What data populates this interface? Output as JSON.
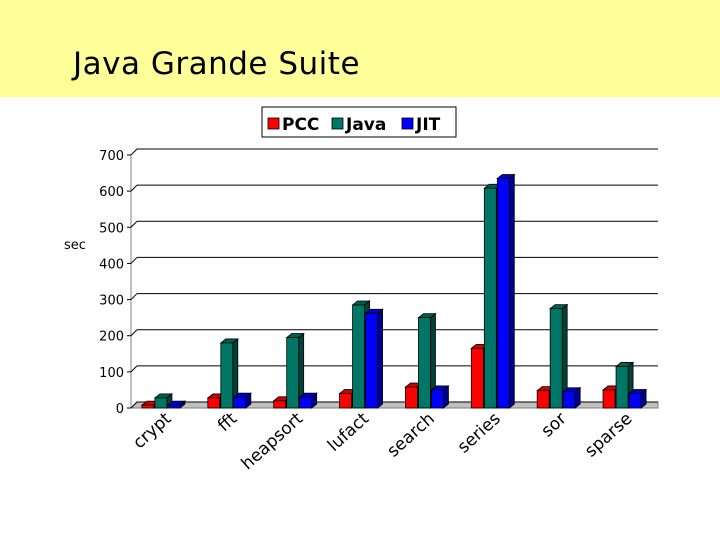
{
  "slide": {
    "title": "Java Grande Suite"
  },
  "chart_data": {
    "type": "bar",
    "style": "3d-clustered",
    "title": "",
    "xlabel": "",
    "ylabel": "sec",
    "ylim": [
      0,
      700
    ],
    "yticks": [
      0,
      100,
      200,
      300,
      400,
      500,
      600,
      700
    ],
    "grid": true,
    "legend": "top",
    "categories": [
      "crypt",
      "fft",
      "heapsort",
      "lufact",
      "search",
      "series",
      "sor",
      "sparse"
    ],
    "series": [
      {
        "name": "PCC",
        "color": "#ff0000",
        "values": [
          8,
          28,
          20,
          40,
          58,
          165,
          48,
          50
        ]
      },
      {
        "name": "Java",
        "color": "#007766",
        "values": [
          28,
          180,
          195,
          285,
          250,
          608,
          275,
          115
        ]
      },
      {
        "name": "JIT",
        "color": "#0000ff",
        "values": [
          8,
          30,
          30,
          262,
          50,
          635,
          45,
          40
        ]
      }
    ]
  }
}
